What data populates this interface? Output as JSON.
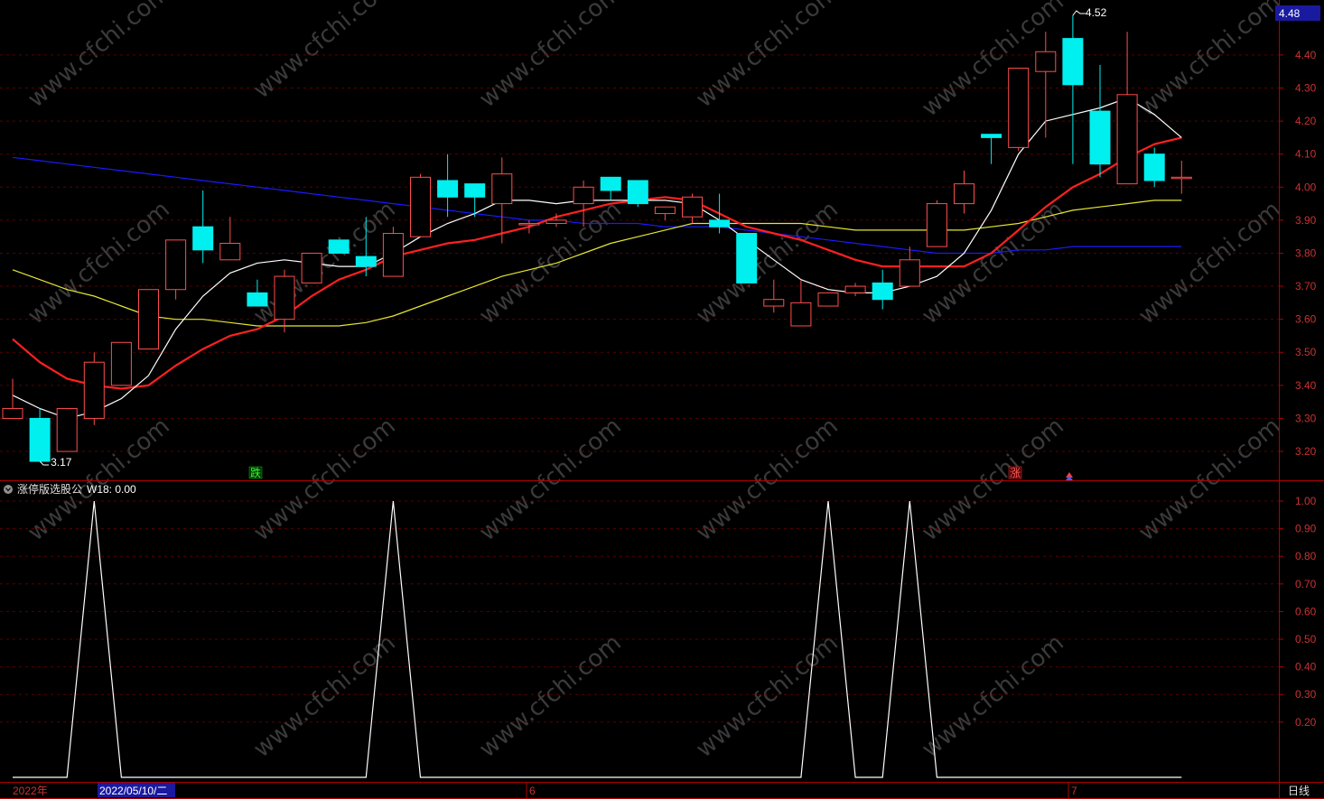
{
  "chart_data": [
    {
      "type": "candlestick",
      "ylim": [
        3.12,
        4.54
      ],
      "y_ticks": [
        "3.20",
        "3.30",
        "3.40",
        "3.50",
        "3.60",
        "3.70",
        "3.80",
        "3.90",
        "4.00",
        "4.10",
        "4.20",
        "4.30",
        "4.40"
      ],
      "current_price": "4.48",
      "high_label": "4.52",
      "low_label": "3.17",
      "signal_down": "跌",
      "signal_up": "涨",
      "colors": {
        "up": "#ff4d4d",
        "down": "#00f0f0",
        "ma5": "#ffffff",
        "ma10": "#ff2020",
        "ma20": "#e6e633",
        "ma60": "#1a1aff"
      },
      "candles": [
        {
          "o": 3.3,
          "h": 3.42,
          "l": 3.3,
          "c": 3.33
        },
        {
          "o": 3.3,
          "h": 3.33,
          "l": 3.17,
          "c": 3.17
        },
        {
          "o": 3.2,
          "h": 3.33,
          "l": 3.2,
          "c": 3.33
        },
        {
          "o": 3.3,
          "h": 3.5,
          "l": 3.28,
          "c": 3.47
        },
        {
          "o": 3.4,
          "h": 3.53,
          "l": 3.4,
          "c": 3.53
        },
        {
          "o": 3.51,
          "h": 3.69,
          "l": 3.51,
          "c": 3.69
        },
        {
          "o": 3.69,
          "h": 3.84,
          "l": 3.66,
          "c": 3.84
        },
        {
          "o": 3.88,
          "h": 3.99,
          "l": 3.77,
          "c": 3.81
        },
        {
          "o": 3.78,
          "h": 3.91,
          "l": 3.78,
          "c": 3.83
        },
        {
          "o": 3.68,
          "h": 3.72,
          "l": 3.64,
          "c": 3.64
        },
        {
          "o": 3.6,
          "h": 3.75,
          "l": 3.56,
          "c": 3.73
        },
        {
          "o": 3.71,
          "h": 3.8,
          "l": 3.71,
          "c": 3.8
        },
        {
          "o": 3.84,
          "h": 3.84,
          "l": 3.8,
          "c": 3.8
        },
        {
          "o": 3.79,
          "h": 3.91,
          "l": 3.73,
          "c": 3.76
        },
        {
          "o": 3.73,
          "h": 3.88,
          "l": 3.73,
          "c": 3.86
        },
        {
          "o": 3.85,
          "h": 4.04,
          "l": 3.85,
          "c": 4.03
        },
        {
          "o": 4.02,
          "h": 4.1,
          "l": 3.91,
          "c": 3.97
        },
        {
          "o": 4.01,
          "h": 4.01,
          "l": 3.91,
          "c": 3.97
        },
        {
          "o": 3.95,
          "h": 4.09,
          "l": 3.83,
          "c": 4.04
        },
        {
          "o": 3.89,
          "h": 3.9,
          "l": 3.86,
          "c": 3.89
        },
        {
          "o": 3.89,
          "h": 3.92,
          "l": 3.88,
          "c": 3.9
        },
        {
          "o": 3.95,
          "h": 4.02,
          "l": 3.88,
          "c": 4.0
        },
        {
          "o": 4.03,
          "h": 4.03,
          "l": 3.96,
          "c": 3.99
        },
        {
          "o": 4.02,
          "h": 4.02,
          "l": 3.94,
          "c": 3.95
        },
        {
          "o": 3.92,
          "h": 3.94,
          "l": 3.9,
          "c": 3.94
        },
        {
          "o": 3.91,
          "h": 3.98,
          "l": 3.89,
          "c": 3.97
        },
        {
          "o": 3.9,
          "h": 3.98,
          "l": 3.86,
          "c": 3.88
        },
        {
          "o": 3.86,
          "h": 3.86,
          "l": 3.71,
          "c": 3.71
        },
        {
          "o": 3.64,
          "h": 3.72,
          "l": 3.62,
          "c": 3.66
        },
        {
          "o": 3.58,
          "h": 3.72,
          "l": 3.58,
          "c": 3.65
        },
        {
          "o": 3.64,
          "h": 3.68,
          "l": 3.64,
          "c": 3.68
        },
        {
          "o": 3.68,
          "h": 3.71,
          "l": 3.67,
          "c": 3.7
        },
        {
          "o": 3.71,
          "h": 3.75,
          "l": 3.63,
          "c": 3.66
        },
        {
          "o": 3.7,
          "h": 3.82,
          "l": 3.7,
          "c": 3.78
        },
        {
          "o": 3.82,
          "h": 3.96,
          "l": 3.82,
          "c": 3.95
        },
        {
          "o": 3.95,
          "h": 4.05,
          "l": 3.92,
          "c": 4.01
        },
        {
          "o": 4.16,
          "h": 4.16,
          "l": 4.07,
          "c": 4.15
        },
        {
          "o": 4.12,
          "h": 4.36,
          "l": 4.11,
          "c": 4.36
        },
        {
          "o": 4.35,
          "h": 4.47,
          "l": 4.15,
          "c": 4.41
        },
        {
          "o": 4.45,
          "h": 4.52,
          "l": 4.07,
          "c": 4.31
        },
        {
          "o": 4.23,
          "h": 4.37,
          "l": 4.03,
          "c": 4.07
        },
        {
          "o": 4.01,
          "h": 4.47,
          "l": 4.01,
          "c": 4.28
        },
        {
          "o": 4.1,
          "h": 4.12,
          "l": 4.0,
          "c": 4.02
        },
        {
          "o": 4.03,
          "h": 4.08,
          "l": 3.98,
          "c": 4.03
        }
      ],
      "ma5": [
        3.37,
        3.33,
        3.3,
        3.32,
        3.36,
        3.43,
        3.57,
        3.67,
        3.74,
        3.77,
        3.78,
        3.77,
        3.76,
        3.76,
        3.8,
        3.85,
        3.89,
        3.92,
        3.96,
        3.96,
        3.95,
        3.96,
        3.96,
        3.96,
        3.96,
        3.95,
        3.9,
        3.84,
        3.78,
        3.72,
        3.69,
        3.68,
        3.68,
        3.7,
        3.73,
        3.8,
        3.93,
        4.1,
        4.2,
        4.22,
        4.24,
        4.27,
        4.22,
        4.15
      ],
      "ma10": [
        3.54,
        3.47,
        3.42,
        3.4,
        3.39,
        3.4,
        3.46,
        3.51,
        3.55,
        3.57,
        3.61,
        3.67,
        3.72,
        3.75,
        3.79,
        3.81,
        3.83,
        3.84,
        3.86,
        3.88,
        3.91,
        3.93,
        3.95,
        3.96,
        3.97,
        3.96,
        3.92,
        3.88,
        3.86,
        3.84,
        3.81,
        3.78,
        3.76,
        3.76,
        3.76,
        3.76,
        3.8,
        3.87,
        3.94,
        4.0,
        4.04,
        4.09,
        4.13,
        4.15
      ],
      "ma20": [
        3.75,
        3.72,
        3.69,
        3.67,
        3.64,
        3.61,
        3.6,
        3.6,
        3.59,
        3.58,
        3.58,
        3.58,
        3.58,
        3.59,
        3.61,
        3.64,
        3.67,
        3.7,
        3.73,
        3.75,
        3.77,
        3.8,
        3.83,
        3.85,
        3.87,
        3.89,
        3.89,
        3.89,
        3.89,
        3.89,
        3.88,
        3.87,
        3.87,
        3.87,
        3.87,
        3.87,
        3.88,
        3.89,
        3.91,
        3.93,
        3.94,
        3.95,
        3.96,
        3.96
      ],
      "ma60": [
        4.09,
        4.08,
        4.07,
        4.06,
        4.05,
        4.04,
        4.03,
        4.02,
        4.01,
        4.0,
        3.99,
        3.98,
        3.97,
        3.96,
        3.95,
        3.94,
        3.93,
        3.92,
        3.91,
        3.9,
        3.9,
        3.89,
        3.89,
        3.89,
        3.88,
        3.88,
        3.88,
        3.87,
        3.86,
        3.85,
        3.84,
        3.83,
        3.82,
        3.81,
        3.8,
        3.8,
        3.8,
        3.81,
        3.81,
        3.82,
        3.82,
        3.82,
        3.82,
        3.82
      ]
    },
    {
      "type": "line",
      "indicator_name": "涨停版选股公",
      "indicator_value": "W18: 0.00",
      "ylim": [
        0,
        1.02
      ],
      "y_ticks": [
        "0.20",
        "0.30",
        "0.40",
        "0.50",
        "0.60",
        "0.70",
        "0.80",
        "0.90",
        "1.00"
      ],
      "values": [
        0,
        0,
        0,
        1,
        0,
        0,
        0,
        0,
        0,
        0,
        0,
        0,
        0,
        0,
        1,
        0,
        0,
        0,
        0,
        0,
        0,
        0,
        0,
        0,
        0,
        0,
        0,
        0,
        0,
        0,
        1,
        0,
        0,
        1,
        0,
        0,
        0,
        0,
        0,
        0,
        0,
        0,
        0,
        0
      ]
    }
  ],
  "x_axis": {
    "labels": [
      "2022年",
      "6",
      "7"
    ],
    "cursor_date": "2022/05/10/二",
    "period": "日线"
  },
  "watermark": "www.cfchi.com"
}
